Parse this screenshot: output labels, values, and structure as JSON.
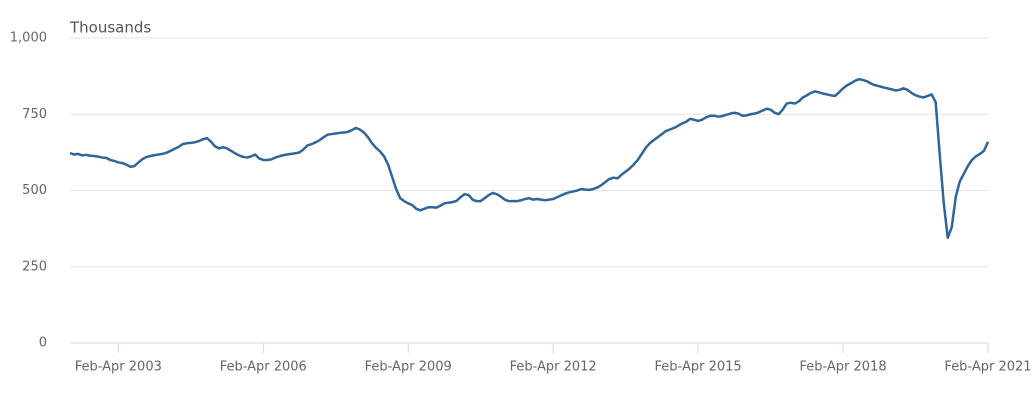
{
  "chart_data": {
    "type": "line",
    "ylabel": "Thousands",
    "color": "#2f6599",
    "grid": true,
    "ylim": [
      0,
      1000
    ],
    "yticks": [
      0,
      250,
      500,
      750,
      {
        "value": 1000,
        "label": "1,000"
      }
    ],
    "categories": [
      null,
      null,
      null,
      null,
      null,
      null,
      null,
      null,
      null,
      null,
      null,
      null,
      "Feb-Apr 2003",
      null,
      null,
      null,
      null,
      null,
      null,
      null,
      null,
      null,
      null,
      null,
      null,
      null,
      null,
      null,
      null,
      null,
      null,
      null,
      null,
      null,
      null,
      null,
      null,
      null,
      null,
      null,
      null,
      null,
      null,
      null,
      null,
      null,
      null,
      null,
      "Feb-Apr 2006",
      null,
      null,
      null,
      null,
      null,
      null,
      null,
      null,
      null,
      null,
      null,
      null,
      null,
      null,
      null,
      null,
      null,
      null,
      null,
      null,
      null,
      null,
      null,
      null,
      null,
      null,
      null,
      null,
      null,
      null,
      null,
      null,
      null,
      null,
      null,
      "Feb-Apr 2009",
      null,
      null,
      null,
      null,
      null,
      null,
      null,
      null,
      null,
      null,
      null,
      null,
      null,
      null,
      null,
      null,
      null,
      null,
      null,
      null,
      null,
      null,
      null,
      null,
      null,
      null,
      null,
      null,
      null,
      null,
      null,
      null,
      null,
      null,
      null,
      "Feb-Apr 2012",
      null,
      null,
      null,
      null,
      null,
      null,
      null,
      null,
      null,
      null,
      null,
      null,
      null,
      null,
      null,
      null,
      null,
      null,
      null,
      null,
      null,
      null,
      null,
      null,
      null,
      null,
      null,
      null,
      null,
      null,
      null,
      null,
      null,
      null,
      null,
      "Feb-Apr 2015",
      null,
      null,
      null,
      null,
      null,
      null,
      null,
      null,
      null,
      null,
      null,
      null,
      null,
      null,
      null,
      null,
      null,
      null,
      null,
      null,
      null,
      null,
      null,
      null,
      null,
      null,
      null,
      null,
      null,
      null,
      null,
      null,
      null,
      null,
      null,
      "Feb-Apr 2018",
      null,
      null,
      null,
      null,
      null,
      null,
      null,
      null,
      null,
      null,
      null,
      null,
      null,
      null,
      null,
      null,
      null,
      null,
      null,
      null,
      null,
      null,
      null,
      null,
      null,
      null,
      null,
      null,
      null,
      null,
      null,
      null,
      null,
      null,
      null,
      "Feb-Apr 2021"
    ],
    "values": [
      623,
      618,
      620,
      615,
      617,
      614,
      613,
      611,
      608,
      607,
      600,
      597,
      592,
      590,
      585,
      578,
      580,
      592,
      603,
      610,
      613,
      616,
      618,
      620,
      624,
      630,
      637,
      643,
      652,
      655,
      656,
      658,
      662,
      668,
      672,
      660,
      645,
      638,
      642,
      638,
      630,
      622,
      615,
      610,
      608,
      612,
      618,
      605,
      600,
      600,
      602,
      608,
      612,
      616,
      618,
      620,
      622,
      625,
      635,
      648,
      652,
      658,
      665,
      675,
      683,
      685,
      687,
      689,
      690,
      692,
      698,
      705,
      700,
      690,
      675,
      655,
      640,
      628,
      612,
      585,
      545,
      505,
      475,
      465,
      458,
      452,
      440,
      435,
      440,
      445,
      445,
      444,
      450,
      458,
      460,
      462,
      466,
      478,
      488,
      485,
      470,
      465,
      465,
      475,
      485,
      492,
      488,
      480,
      470,
      465,
      465,
      465,
      468,
      472,
      475,
      470,
      472,
      470,
      468,
      470,
      472,
      478,
      484,
      490,
      494,
      497,
      500,
      505,
      503,
      502,
      505,
      510,
      518,
      528,
      538,
      542,
      540,
      552,
      562,
      572,
      585,
      600,
      620,
      640,
      655,
      665,
      675,
      685,
      695,
      700,
      705,
      712,
      720,
      725,
      735,
      732,
      728,
      732,
      740,
      745,
      745,
      742,
      744,
      748,
      752,
      755,
      752,
      745,
      746,
      750,
      752,
      756,
      762,
      768,
      765,
      755,
      750,
      765,
      785,
      788,
      785,
      792,
      805,
      812,
      820,
      825,
      822,
      818,
      815,
      812,
      810,
      822,
      835,
      845,
      852,
      860,
      865,
      862,
      858,
      850,
      845,
      842,
      838,
      835,
      832,
      828,
      830,
      835,
      830,
      820,
      812,
      808,
      805,
      810,
      815,
      790,
      620,
      460,
      345,
      380,
      480,
      530,
      555,
      580,
      600,
      612,
      620,
      630,
      660
    ]
  }
}
